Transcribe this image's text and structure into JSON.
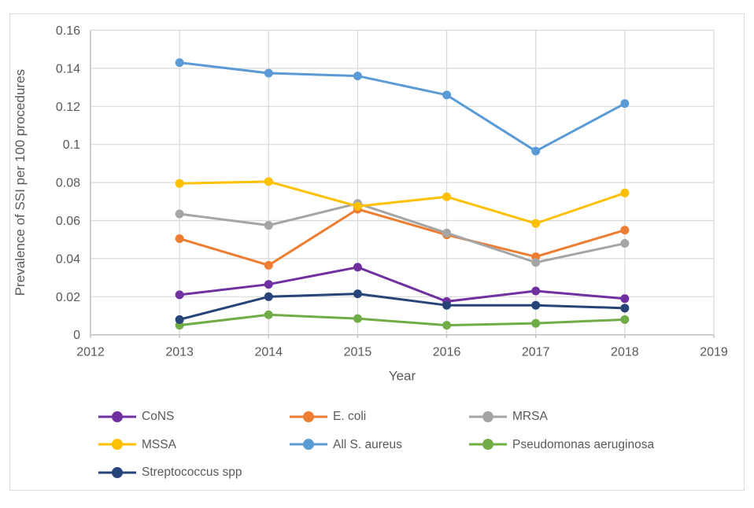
{
  "figure": {
    "background": "#ffffff",
    "border_color": "#d9d9d9",
    "gridline_color": "#d9d9d9",
    "axis_line_color": "#bfbfbf",
    "text_color": "#595959"
  },
  "chart_data": {
    "type": "line",
    "title": "",
    "xlabel": "Year",
    "ylabel": "Prevalence of SSI per 100 procedures",
    "grid": true,
    "legend_position": "bottom",
    "xlim": [
      2012,
      2019
    ],
    "ylim": [
      0,
      0.16
    ],
    "x_ticks": [
      2012,
      2013,
      2014,
      2015,
      2016,
      2017,
      2018,
      2019
    ],
    "x_tick_labels": [
      "2012",
      "2013",
      "2014",
      "2015",
      "2016",
      "2017",
      "2018",
      "2019"
    ],
    "y_ticks": [
      0,
      0.02,
      0.04,
      0.06,
      0.08,
      0.1,
      0.12,
      0.14,
      0.16
    ],
    "y_tick_labels": [
      "0",
      "0.02",
      "0.04",
      "0.06",
      "0.08",
      "0.1",
      "0.12",
      "0.14",
      "0.16"
    ],
    "x": [
      2013,
      2014,
      2015,
      2016,
      2017,
      2018
    ],
    "series": [
      {
        "name": "CoNS",
        "color": "#7030A0",
        "values": [
          0.021,
          0.0265,
          0.0355,
          0.0175,
          0.023,
          0.019
        ]
      },
      {
        "name": "E. coli",
        "color": "#ED7D31",
        "values": [
          0.0505,
          0.0365,
          0.066,
          0.0525,
          0.041,
          0.055
        ]
      },
      {
        "name": "MRSA",
        "color": "#A5A5A5",
        "values": [
          0.0635,
          0.0575,
          0.069,
          0.0535,
          0.038,
          0.048
        ]
      },
      {
        "name": "MSSA",
        "color": "#FFC000",
        "values": [
          0.0795,
          0.0805,
          0.0675,
          0.0725,
          0.0585,
          0.0745
        ]
      },
      {
        "name": "All S. aureus",
        "color": "#5B9BD5",
        "values": [
          0.143,
          0.1375,
          0.136,
          0.126,
          0.0965,
          0.1215
        ]
      },
      {
        "name": "Pseudomonas aeruginosa",
        "color": "#70AD47",
        "values": [
          0.005,
          0.0105,
          0.0085,
          0.005,
          0.006,
          0.008
        ]
      },
      {
        "name": "Streptococcus spp",
        "color": "#264478",
        "values": [
          0.008,
          0.02,
          0.0215,
          0.0155,
          0.0155,
          0.014
        ]
      }
    ]
  }
}
